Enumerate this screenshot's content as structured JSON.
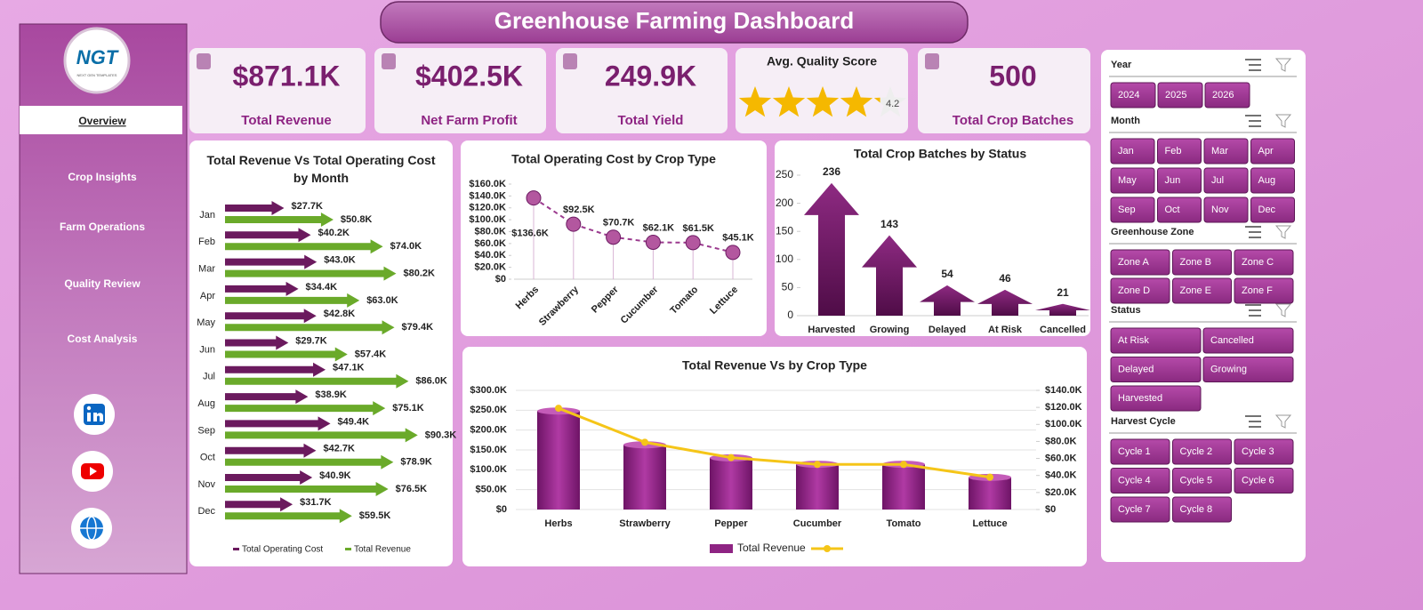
{
  "title": "Greenhouse Farming Dashboard",
  "logo": {
    "text": "NGT",
    "subtitle": "NEXT GEN TEMPLATES"
  },
  "nav": [
    "Overview",
    "Crop Insights",
    "Farm Operations",
    "Quality Review",
    "Cost Analysis"
  ],
  "kpis": [
    {
      "value": "$871.1K",
      "label": "Total Revenue"
    },
    {
      "value": "$402.5K",
      "label": "Net Farm Profit"
    },
    {
      "value": "249.9K",
      "label": "Total Yield"
    },
    {
      "title": "Avg. Quality Score",
      "value": 4.2
    },
    {
      "value": 500,
      "label": "Total Crop Batches"
    }
  ],
  "slicers": [
    {
      "title": "Year",
      "items": [
        2024,
        2025,
        2026
      ]
    },
    {
      "title": "Month",
      "items": [
        "Jan",
        "Feb",
        "Mar",
        "Apr",
        "May",
        "Jun",
        "Jul",
        "Aug",
        "Sep",
        "Oct",
        "Nov",
        "Dec"
      ]
    },
    {
      "title": "Greenhouse Zone",
      "items": [
        "Zone A",
        "Zone B",
        "Zone C",
        "Zone D",
        "Zone E",
        "Zone F"
      ]
    },
    {
      "title": "Status",
      "items": [
        "At Risk",
        "Cancelled",
        "Delayed",
        "Growing",
        "Harvested"
      ]
    },
    {
      "title": "Harvest Cycle",
      "items": [
        "Cycle 1",
        "Cycle 2",
        "Cycle 3",
        "Cycle 4",
        "Cycle 5",
        "Cycle 6",
        "Cycle 7",
        "Cycle 8"
      ]
    }
  ],
  "chart_data": [
    {
      "type": "bar",
      "orientation": "horizontal",
      "title": "Total Revenue Vs Total Operating Cost by Month",
      "categories": [
        "Jan",
        "Feb",
        "Mar",
        "Apr",
        "May",
        "Jun",
        "Jul",
        "Aug",
        "Sep",
        "Oct",
        "Nov",
        "Dec"
      ],
      "series": [
        {
          "name": "Total Operating Cost",
          "color": "#6b1a5e",
          "values": [
            27.7,
            40.2,
            43.0,
            34.4,
            42.8,
            29.7,
            47.1,
            38.9,
            49.4,
            42.7,
            40.9,
            31.7
          ],
          "value_labels": [
            "$27.7K",
            "$40.2K",
            "$43.0K",
            "$34.4K",
            "$42.8K",
            "$29.7K",
            "$47.1K",
            "$38.9K",
            "$49.4K",
            "$42.7K",
            "$40.9K",
            "$31.7K"
          ]
        },
        {
          "name": "Total Revenue",
          "color": "#6aaa2a",
          "values": [
            50.8,
            74.0,
            80.2,
            63.0,
            79.4,
            57.4,
            86.0,
            75.1,
            90.3,
            78.9,
            76.5,
            59.5
          ],
          "value_labels": [
            "$50.8K",
            "$74.0K",
            "$80.2K",
            "$63.0K",
            "$79.4K",
            "$57.4K",
            "$86.0K",
            "$75.1K",
            "$90.3K",
            "$78.9K",
            "$76.5K",
            "$59.5K"
          ]
        }
      ]
    },
    {
      "type": "line",
      "title": "Total Operating Cost by Crop Type",
      "categories": [
        "Herbs",
        "Strawberry",
        "Pepper",
        "Cucumber",
        "Tomato",
        "Lettuce"
      ],
      "values": [
        136600,
        92500,
        70700,
        62100,
        61500,
        45100
      ],
      "value_labels": [
        "$136.6K",
        "$92.5K",
        "$70.7K",
        "$62.1K",
        "$61.5K",
        "$45.1K"
      ],
      "color": "#9b3a8e",
      "ylim": [
        0,
        160000
      ],
      "yticks": [
        {
          "value": 0,
          "label": "$0"
        },
        {
          "value": 20000,
          "label": "$20.0K"
        },
        {
          "value": 40000,
          "label": "$40.0K"
        },
        {
          "value": 60000,
          "label": "$60.0K"
        },
        {
          "value": 80000,
          "label": "$80.0K"
        },
        {
          "value": 100000,
          "label": "$100.0K"
        },
        {
          "value": 120000,
          "label": "$120.0K"
        },
        {
          "value": 140000,
          "label": "$140.0K"
        },
        {
          "value": 160000,
          "label": "$160.0K"
        }
      ]
    },
    {
      "type": "arrow-column",
      "title": "Total Crop Batches by Status",
      "categories": [
        "Harvested",
        "Growing",
        "Delayed",
        "At Risk",
        "Cancelled"
      ],
      "values": [
        236,
        143,
        54,
        46,
        21
      ],
      "color": "#7a1f6e",
      "ylim": [
        0,
        250
      ],
      "yticks": [
        0,
        50,
        100,
        150,
        200,
        250
      ]
    },
    {
      "type": "combo",
      "title": "Total Revenue Vs  by Crop Type",
      "categories": [
        "Herbs",
        "Strawberry",
        "Pepper",
        "Cucumber",
        "Tomato",
        "Lettuce"
      ],
      "series": [
        {
          "name": "Total Revenue",
          "color": "#8e2483",
          "values": [
            248000,
            163000,
            130000,
            114000,
            114000,
            81000
          ]
        },
        {
          "color": "#f5c518",
          "axis": "y2",
          "values": [
            119000,
            79000,
            61000,
            53000,
            53000,
            38000
          ]
        }
      ],
      "grid": true,
      "ylim": [
        0,
        300000
      ],
      "yticks": [
        {
          "value": 0,
          "label": "$0"
        },
        {
          "value": 50000,
          "label": "$50.0K"
        },
        {
          "value": 100000,
          "label": "$100.0K"
        },
        {
          "value": 150000,
          "label": "$150.0K"
        },
        {
          "value": 200000,
          "label": "$200.0K"
        },
        {
          "value": 250000,
          "label": "$250.0K"
        },
        {
          "value": 300000,
          "label": "$300.0K"
        }
      ],
      "y2lim": [
        0,
        140000
      ],
      "y2ticks": [
        {
          "value": 0,
          "label": "$0"
        },
        {
          "value": 20000,
          "label": "$20.0K"
        },
        {
          "value": 40000,
          "label": "$40.0K"
        },
        {
          "value": 60000,
          "label": "$60.0K"
        },
        {
          "value": 80000,
          "label": "$80.0K"
        },
        {
          "value": 100000,
          "label": "$100.0K"
        },
        {
          "value": 120000,
          "label": "$120.0K"
        },
        {
          "value": 140000,
          "label": "$140.0K"
        }
      ]
    }
  ]
}
